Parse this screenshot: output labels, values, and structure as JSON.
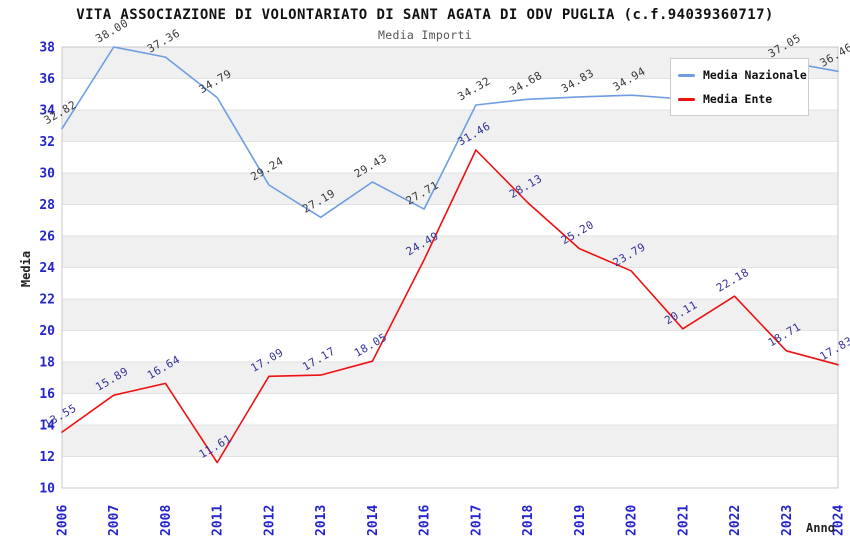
{
  "chart_data": {
    "type": "line",
    "title": "VITA ASSOCIAZIONE DI VOLONTARIATO DI SANT AGATA DI ODV PUGLIA (c.f.94039360717)",
    "subtitle": "Media Importi",
    "xlabel": "Anno",
    "ylabel": "Media",
    "ylim": [
      10,
      38
    ],
    "yticks": [
      10,
      12,
      14,
      16,
      18,
      20,
      22,
      24,
      26,
      28,
      30,
      32,
      34,
      36,
      38
    ],
    "categories": [
      "2006",
      "2007",
      "2008",
      "2011",
      "2012",
      "2013",
      "2014",
      "2016",
      "2017",
      "2018",
      "2019",
      "2020",
      "2021",
      "2022",
      "2023",
      "2024"
    ],
    "grid": "horizontal gray bands every 2 units, gridline at each even tick",
    "legend_position": "top-right overlay box",
    "series": [
      {
        "name": "Media Nazionale",
        "color": "#6f9de2",
        "label_color": "#3a3a3a",
        "values": [
          32.82,
          38.0,
          37.36,
          34.79,
          29.24,
          27.19,
          29.43,
          27.71,
          34.32,
          34.68,
          34.83,
          34.94,
          34.7,
          35.9,
          37.05,
          36.46
        ],
        "point_labels": [
          "32.82",
          "38.00",
          "37.36",
          "34.79",
          "29.24",
          "27.19",
          "29.43",
          "27.71",
          "34.32",
          "34.68",
          "34.83",
          "34.94",
          "",
          "",
          "37.05",
          "36.46"
        ]
      },
      {
        "name": "Media Ente",
        "color": "#ee1111",
        "label_color": "#333399",
        "values": [
          13.55,
          15.89,
          16.64,
          11.61,
          17.09,
          17.17,
          18.05,
          24.49,
          31.46,
          28.13,
          25.2,
          23.79,
          20.11,
          22.18,
          18.71,
          17.83
        ],
        "point_labels": [
          "13.55",
          "15.89",
          "16.64",
          "11.61",
          "17.09",
          "17.17",
          "18.05",
          "24.49",
          "31.46",
          "28.13",
          "25.20",
          "23.79",
          "20.11",
          "22.18",
          "18.71",
          "17.83"
        ]
      }
    ],
    "tick_color": "#2424cc"
  },
  "colors": {
    "background": "#ffffff",
    "band": "#f0f0f0",
    "gridline": "#e2e2e2",
    "plot_border": "#c9c9c9",
    "title": "#111111",
    "subtitle": "#555555",
    "axis_title": "#222222"
  }
}
